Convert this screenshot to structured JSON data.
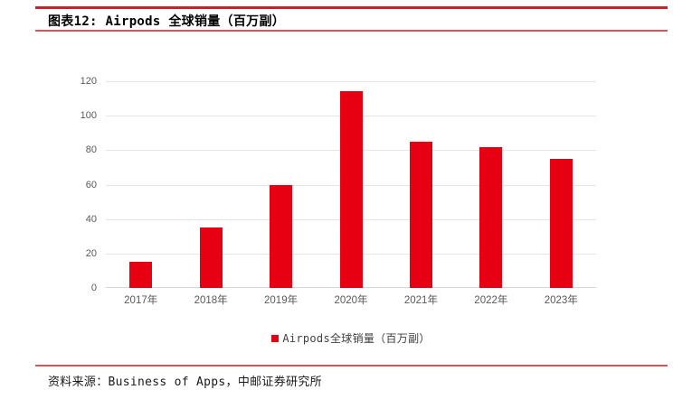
{
  "header": {
    "title": "图表12: Airpods 全球销量（百万副）"
  },
  "chart_data": {
    "type": "bar",
    "categories": [
      "2017年",
      "2018年",
      "2019年",
      "2020年",
      "2021年",
      "2022年",
      "2023年"
    ],
    "values": [
      15,
      35,
      60,
      114,
      85,
      82,
      75
    ],
    "series_name": "Airpods全球销量（百万副）",
    "title": "图表12: Airpods 全球销量（百万副）",
    "xlabel": "",
    "ylabel": "",
    "ylim": [
      0,
      120
    ],
    "yticks": [
      0,
      20,
      40,
      60,
      80,
      100,
      120
    ],
    "grid": true,
    "legend_position": "bottom"
  },
  "legend": {
    "marker": "square",
    "label": "Airpods全球销量（百万副）"
  },
  "footer": {
    "source": "资料来源：Business of Apps，中邮证券研究所"
  },
  "colors": {
    "bar": "#E60012",
    "rule_top": "#C7232B",
    "rule_thin": "#D4555B",
    "axis_text": "#595959",
    "gridline": "#E5E5E5",
    "axis_line": "#D6D6D6"
  }
}
